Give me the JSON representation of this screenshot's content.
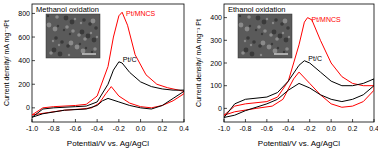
{
  "chart_data": [
    {
      "type": "line",
      "title": "Methanol oxidation",
      "x_label": "Potential/V vs. Ag/AgCl",
      "y_label": "Current density/ mA mg⁻¹Pt",
      "xlim": [
        -1.0,
        0.4
      ],
      "xticks": [
        {
          "value": -1.0,
          "label": "-1.0"
        },
        -0.8,
        -0.6,
        -0.4,
        -0.2,
        {
          "value": 0,
          "label": "0.0"
        },
        0.2,
        0.4
      ],
      "ylim": [
        -120,
        880
      ],
      "yticks": [
        0,
        200,
        400,
        600,
        800
      ],
      "series": [
        {
          "name": "Pt/MNCS",
          "color": "#ff0000",
          "x": [
            -1.0,
            -0.9,
            -0.8,
            -0.6,
            -0.5,
            -0.4,
            -0.3,
            -0.25,
            -0.2,
            -0.17,
            -0.12,
            -0.05,
            0.05,
            0.15,
            0.25,
            0.35,
            0.4,
            0.4,
            0.3,
            0.2,
            0.1,
            0.0,
            -0.1,
            -0.2,
            -0.27,
            -0.32,
            -0.38,
            -0.45,
            -0.55,
            -0.7,
            -0.85,
            -1.0
          ],
          "values": [
            -60,
            0,
            10,
            20,
            30,
            100,
            350,
            600,
            780,
            810,
            700,
            450,
            280,
            200,
            170,
            150,
            140,
            120,
            60,
            20,
            0,
            10,
            40,
            100,
            180,
            120,
            40,
            0,
            -10,
            -20,
            -40,
            -60
          ]
        },
        {
          "name": "Pt/C",
          "color": "#000000",
          "x": [
            -1.0,
            -0.9,
            -0.8,
            -0.6,
            -0.5,
            -0.4,
            -0.3,
            -0.25,
            -0.2,
            -0.17,
            -0.1,
            0.0,
            0.1,
            0.2,
            0.3,
            0.4,
            0.4,
            0.3,
            0.2,
            0.1,
            0.0,
            -0.1,
            -0.2,
            -0.3,
            -0.35,
            -0.4,
            -0.5,
            -0.7,
            -0.9,
            -1.0
          ],
          "values": [
            -80,
            -10,
            0,
            10,
            15,
            50,
            200,
            320,
            390,
            380,
            300,
            220,
            180,
            160,
            150,
            150,
            140,
            80,
            20,
            -10,
            0,
            20,
            50,
            80,
            60,
            20,
            -10,
            -20,
            -50,
            -80
          ]
        }
      ]
    },
    {
      "type": "line",
      "title": "Ethanol oxidation",
      "x_label": "Potential/V vs. Ag/AgCl",
      "y_label": "Current density/ mA mg⁻¹ Pt",
      "xlim": [
        -1.0,
        0.4
      ],
      "xticks": [
        {
          "value": -1.0,
          "label": "-1.0"
        },
        -0.8,
        -0.6,
        -0.4,
        -0.2,
        {
          "value": 0,
          "label": "0.0"
        },
        0.2,
        0.4
      ],
      "ylim": [
        -60,
        460
      ],
      "yticks": [
        0,
        100,
        200,
        300,
        400
      ],
      "series": [
        {
          "name": "Pt/MNCS",
          "color": "#ff0000",
          "x": [
            -1.0,
            -0.9,
            -0.8,
            -0.6,
            -0.5,
            -0.4,
            -0.3,
            -0.25,
            -0.22,
            -0.18,
            -0.1,
            0.0,
            0.1,
            0.2,
            0.3,
            0.4,
            0.4,
            0.3,
            0.2,
            0.1,
            0.0,
            -0.1,
            -0.2,
            -0.3,
            -0.35,
            -0.45,
            -0.55,
            -0.7,
            -0.9,
            -1.0
          ],
          "values": [
            -30,
            10,
            20,
            30,
            50,
            120,
            280,
            380,
            400,
            390,
            300,
            200,
            140,
            110,
            100,
            100,
            80,
            30,
            10,
            5,
            20,
            60,
            110,
            160,
            130,
            40,
            10,
            0,
            -15,
            -30
          ]
        },
        {
          "name": "Pt/C",
          "color": "#000000",
          "x": [
            -1.0,
            -0.9,
            -0.8,
            -0.6,
            -0.5,
            -0.4,
            -0.3,
            -0.25,
            -0.2,
            -0.1,
            0.0,
            0.1,
            0.2,
            0.3,
            0.4,
            0.4,
            0.3,
            0.2,
            0.1,
            0.0,
            -0.1,
            -0.2,
            -0.3,
            -0.4,
            -0.5,
            -0.6,
            -0.8,
            -0.9,
            -1.0
          ],
          "values": [
            -40,
            20,
            40,
            50,
            70,
            120,
            190,
            210,
            200,
            160,
            120,
            100,
            100,
            110,
            130,
            100,
            60,
            40,
            30,
            40,
            60,
            90,
            110,
            80,
            40,
            20,
            -10,
            -30,
            -40
          ]
        }
      ]
    }
  ]
}
